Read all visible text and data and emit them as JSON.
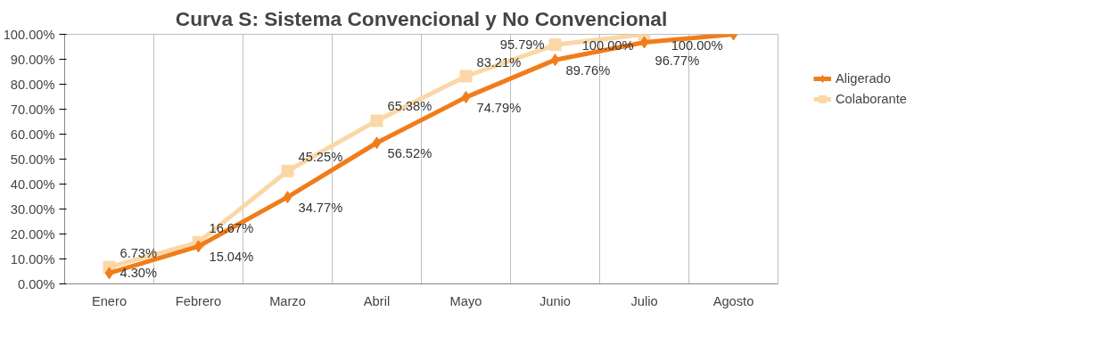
{
  "chart_data": {
    "type": "line",
    "title": "Curva S: Sistema Convencional y No Convencional",
    "categories": [
      "Enero",
      "Febrero",
      "Marzo",
      "Abril",
      "Mayo",
      "Junio",
      "Julio",
      "Agosto"
    ],
    "series": [
      {
        "name": "Aligerado",
        "color": "#f07d1a",
        "marker": "diamond",
        "values": [
          4.3,
          15.04,
          34.77,
          56.52,
          74.79,
          89.76,
          96.77,
          100.0
        ],
        "value_labels": [
          "4.30%",
          "15.04%",
          "34.77%",
          "56.52%",
          "74.79%",
          "89.76%",
          "96.77%",
          "100.00%"
        ]
      },
      {
        "name": "Colaborante",
        "color": "#fad7a6",
        "marker": "square",
        "values": [
          6.73,
          16.67,
          45.25,
          65.38,
          83.21,
          95.79,
          100.0,
          null
        ],
        "value_labels": [
          "6.73%",
          "16.67%",
          "45.25%",
          "65.38%",
          "83.21%",
          "95.79%",
          "100.00%",
          null
        ]
      }
    ],
    "ylim": [
      0,
      100
    ],
    "yticks": [
      {
        "value": 0,
        "label": "0.00%"
      },
      {
        "value": 10,
        "label": "10.00%"
      },
      {
        "value": 20,
        "label": "20.00%"
      },
      {
        "value": 30,
        "label": "30.00%"
      },
      {
        "value": 40,
        "label": "40.00%"
      },
      {
        "value": 50,
        "label": "50.00%"
      },
      {
        "value": 60,
        "label": "60.00%"
      },
      {
        "value": 70,
        "label": "70.00%"
      },
      {
        "value": 80,
        "label": "80.00%"
      },
      {
        "value": 90,
        "label": "90.00%"
      },
      {
        "value": 100,
        "label": "100.00%"
      }
    ],
    "grid": "x",
    "legend": "right"
  }
}
